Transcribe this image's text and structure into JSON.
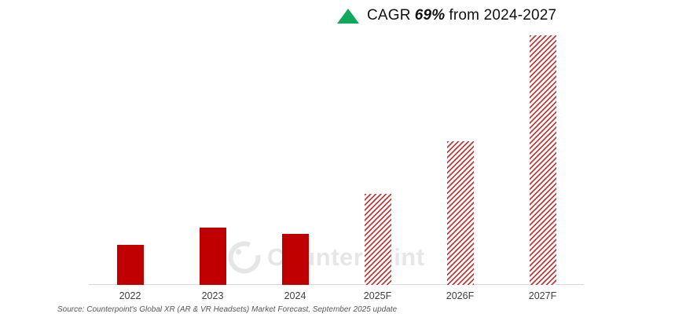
{
  "header": {
    "cagr_prefix": "CAGR",
    "cagr_value": "69%",
    "cagr_suffix": "from 2024-2027"
  },
  "chart_data": {
    "type": "bar",
    "title": "CAGR 69% from 2024-2027",
    "xlabel": "",
    "ylabel": "",
    "categories": [
      "2022",
      "2023",
      "2024",
      "2025F",
      "2026F",
      "2027F"
    ],
    "values": [
      51,
      73,
      65,
      116,
      183,
      318
    ],
    "forecast_mask": [
      false,
      false,
      false,
      true,
      true,
      true
    ],
    "units": "relative units (y-axis unlabeled; values estimated from bar heights, 2024 baseline grows ~69% CAGR to 2027)",
    "ylim": [
      0,
      323
    ],
    "grid": false,
    "legend": "none",
    "bar_style_note": "2022-2024 solid fill; 2025F-2027F diagonal hatched fill (forecast)"
  },
  "watermark": {
    "text": "Counterpoint"
  },
  "footer": {
    "source": "Source: Counterpoint's Global XR (AR & VR Headsets) Market Forecast, September 2025 update"
  },
  "colors": {
    "bar_solid": "#C00000",
    "bar_hatch_stripe": "#C43C3C",
    "triangle_green": "#12A85C",
    "axis_line": "#D9D9D9",
    "axis_label_gray": "#404040",
    "source_gray": "#595959",
    "watermark_gray": "#E6E6E6",
    "background": "#FFFFFF",
    "title_text": "#111111"
  }
}
